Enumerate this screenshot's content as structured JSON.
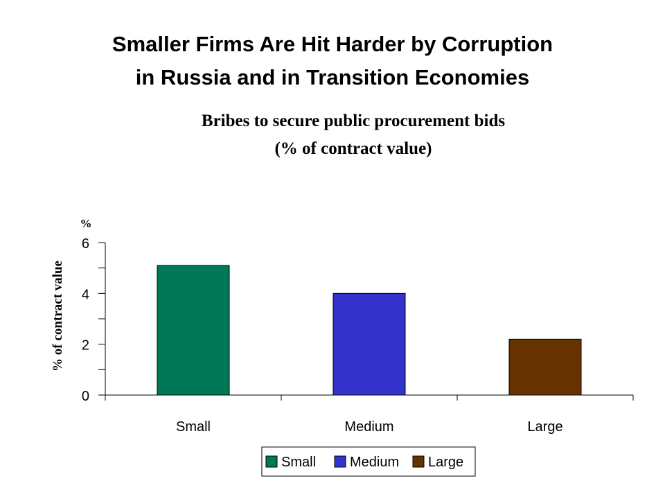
{
  "slide": {
    "title_line1": "Smaller Firms Are Hit Harder by Corruption",
    "title_line2": "in Russia and in Transition Economies"
  },
  "chart_data": {
    "type": "bar",
    "title_line1": "Bribes to secure public procurement bids",
    "title_line2": "(% of contract value)",
    "ylabel": "% of contract value",
    "yunit": "%",
    "xlabel": "",
    "categories": [
      "Small",
      "Medium",
      "Large"
    ],
    "values": [
      5.1,
      4.0,
      2.2
    ],
    "colors": [
      "#007755",
      "#3333CC",
      "#663300"
    ],
    "ylim": [
      0,
      6
    ],
    "yticks": [
      0,
      2,
      4,
      6
    ],
    "grid": false,
    "legend": {
      "placement": "bottom",
      "entries": [
        "Small",
        "Medium",
        "Large"
      ]
    }
  }
}
